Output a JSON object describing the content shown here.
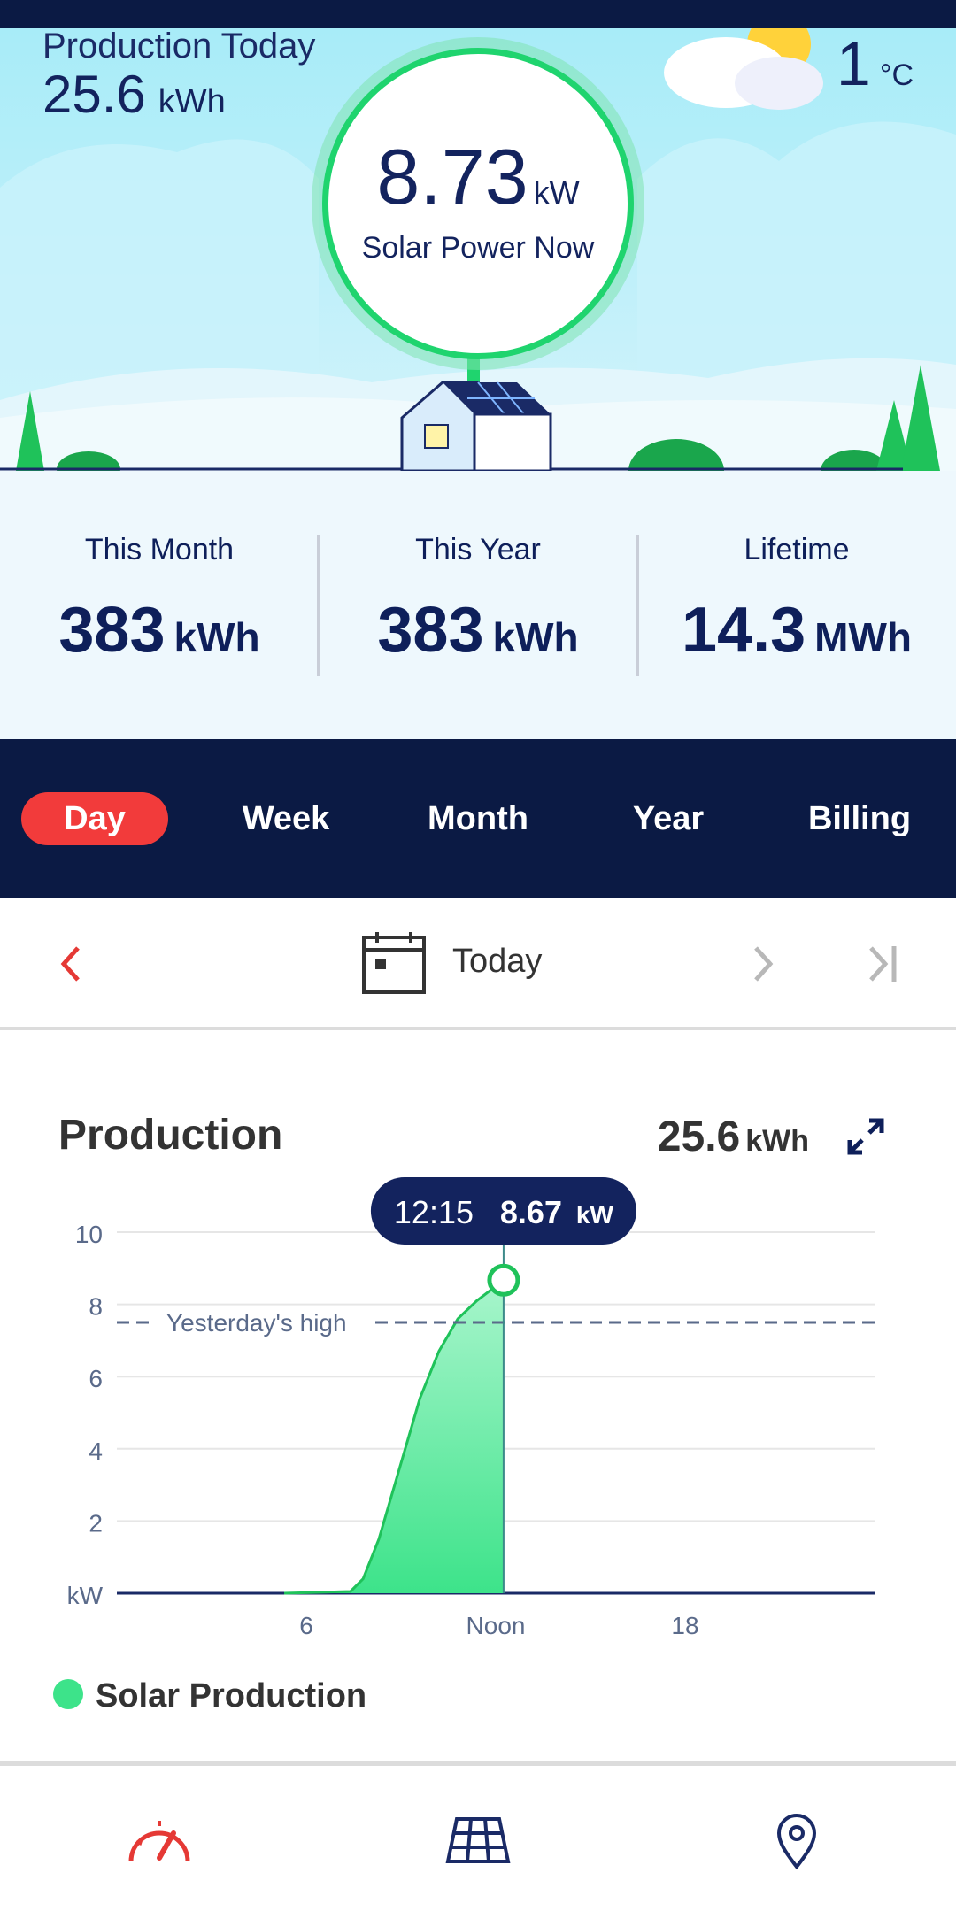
{
  "hero": {
    "production_today_label": "Production Today",
    "production_today_value": "25.6",
    "production_today_unit": "kWh",
    "temperature_value": "1",
    "temperature_unit": "°C",
    "power_now_value": "8.73",
    "power_now_unit": "kW",
    "power_now_label": "Solar Power Now"
  },
  "summary": [
    {
      "title": "This Month",
      "value": "383",
      "unit": "kWh"
    },
    {
      "title": "This Year",
      "value": "383",
      "unit": "kWh"
    },
    {
      "title": "Lifetime",
      "value": "14.3",
      "unit": "MWh"
    }
  ],
  "tabs": [
    {
      "label": "Day",
      "active": true
    },
    {
      "label": "Week",
      "active": false
    },
    {
      "label": "Month",
      "active": false
    },
    {
      "label": "Year",
      "active": false
    },
    {
      "label": "Billing",
      "active": false
    }
  ],
  "date_nav": {
    "label": "Today",
    "icons": [
      "chevron-left-icon",
      "calendar-icon",
      "chevron-right-icon",
      "skip-to-end-icon"
    ]
  },
  "production_card": {
    "title": "Production",
    "total_value": "25.6",
    "total_unit": "kWh",
    "expand_icon": "expand-icon"
  },
  "chart_data": {
    "type": "area",
    "ylim": [
      0,
      10
    ],
    "y_ticks": [
      "10",
      "8",
      "6",
      "4",
      "2",
      "kW"
    ],
    "x_ticks": [
      {
        "hour": 6,
        "label": "6"
      },
      {
        "hour": 12,
        "label": "Noon"
      },
      {
        "hour": 18,
        "label": "18"
      }
    ],
    "xlim": [
      0,
      24
    ],
    "series": [
      {
        "name": "Solar Production",
        "color": "#3de38a",
        "x": [
          5.3,
          7.4,
          7.8,
          8.3,
          9.0,
          9.6,
          10.2,
          10.8,
          11.4,
          12.25
        ],
        "y": [
          0,
          0.05,
          0.4,
          1.5,
          3.6,
          5.4,
          6.7,
          7.6,
          8.1,
          8.67
        ]
      }
    ],
    "reference_line": {
      "label": "Yesterday's high",
      "value": 7.5
    },
    "tooltip": {
      "time": "12:15",
      "value": "8.67",
      "unit": "kW",
      "x": 12.25,
      "y": 8.67
    }
  },
  "bottom_nav": [
    {
      "icon": "speedometer-icon",
      "color": "#e53935"
    },
    {
      "icon": "solar-panel-icon",
      "color": "#1a2a66"
    },
    {
      "icon": "location-pin-icon",
      "color": "#1a2a66"
    }
  ]
}
